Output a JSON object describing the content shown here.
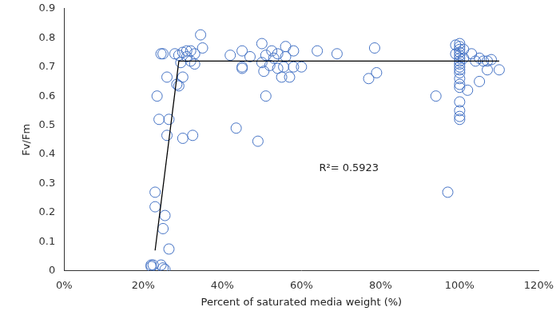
{
  "chart_data": {
    "type": "scatter",
    "x_label": "Percent of saturated media weight (%)",
    "y_label": "Fv/Fm",
    "xlim": [
      0,
      120
    ],
    "xticks": [
      {
        "value": 0,
        "label": "0%"
      },
      {
        "value": 20,
        "label": "20%"
      },
      {
        "value": 40,
        "label": "40%"
      },
      {
        "value": 60,
        "label": "60%"
      },
      {
        "value": 80,
        "label": "80%"
      },
      {
        "value": 100,
        "label": "100%"
      },
      {
        "value": 120,
        "label": "120%"
      }
    ],
    "ylim": [
      0,
      0.9
    ],
    "yticks": [
      0,
      0.1,
      0.2,
      0.3,
      0.4,
      0.5,
      0.6,
      0.7,
      0.8,
      0.9
    ],
    "grid": false,
    "annotations": [
      {
        "text": "R²= 0.5923"
      }
    ],
    "series": [
      {
        "type": "scatter",
        "color": "#4472c4",
        "marker": "circle",
        "x": [
          22,
          22,
          22.5,
          24.5,
          25,
          25.5,
          26.5,
          25,
          25.5,
          23,
          23,
          24,
          23.5,
          26,
          26.5,
          26,
          24.5,
          25,
          28.5,
          29,
          30,
          30,
          29,
          30,
          31,
          32,
          33,
          33,
          32.5,
          34.5,
          35,
          32,
          31,
          28,
          29.5,
          43.5,
          42,
          45,
          45,
          45,
          47,
          49,
          50,
          50,
          50.5,
          51,
          51,
          52,
          52.5,
          53,
          54,
          54,
          55,
          55.5,
          56,
          56,
          57,
          58,
          58,
          60,
          64,
          69,
          77,
          78.5,
          79,
          94,
          97,
          99,
          99,
          100,
          100,
          100,
          100,
          100,
          100,
          100,
          100,
          100,
          100,
          100,
          100,
          100,
          100,
          100,
          100,
          100,
          100,
          101,
          101,
          102,
          103,
          104,
          105,
          105,
          106,
          107,
          107,
          108,
          110
        ],
        "values": [
          0.02,
          0.015,
          0.02,
          0.02,
          0.01,
          0.005,
          0.075,
          0.145,
          0.19,
          0.27,
          0.22,
          0.52,
          0.6,
          0.465,
          0.52,
          0.665,
          0.745,
          0.745,
          0.64,
          0.635,
          0.455,
          0.665,
          0.74,
          0.75,
          0.755,
          0.72,
          0.745,
          0.71,
          0.465,
          0.81,
          0.765,
          0.755,
          0.735,
          0.745,
          0.715,
          0.49,
          0.74,
          0.755,
          0.7,
          0.695,
          0.735,
          0.445,
          0.78,
          0.715,
          0.685,
          0.6,
          0.74,
          0.705,
          0.755,
          0.73,
          0.745,
          0.695,
          0.665,
          0.7,
          0.77,
          0.735,
          0.665,
          0.7,
          0.755,
          0.7,
          0.755,
          0.745,
          0.66,
          0.765,
          0.68,
          0.6,
          0.27,
          0.775,
          0.745,
          0.77,
          0.78,
          0.76,
          0.75,
          0.74,
          0.73,
          0.72,
          0.71,
          0.7,
          0.69,
          0.68,
          0.66,
          0.64,
          0.63,
          0.58,
          0.55,
          0.53,
          0.52,
          0.73,
          0.76,
          0.62,
          0.745,
          0.72,
          0.65,
          0.73,
          0.72,
          0.72,
          0.69,
          0.725,
          0.69
        ]
      },
      {
        "type": "line",
        "color": "#000000",
        "marker": "none",
        "line_style": "solid",
        "x": [
          23,
          29,
          110
        ],
        "values": [
          0.07,
          0.72,
          0.72
        ]
      }
    ]
  }
}
